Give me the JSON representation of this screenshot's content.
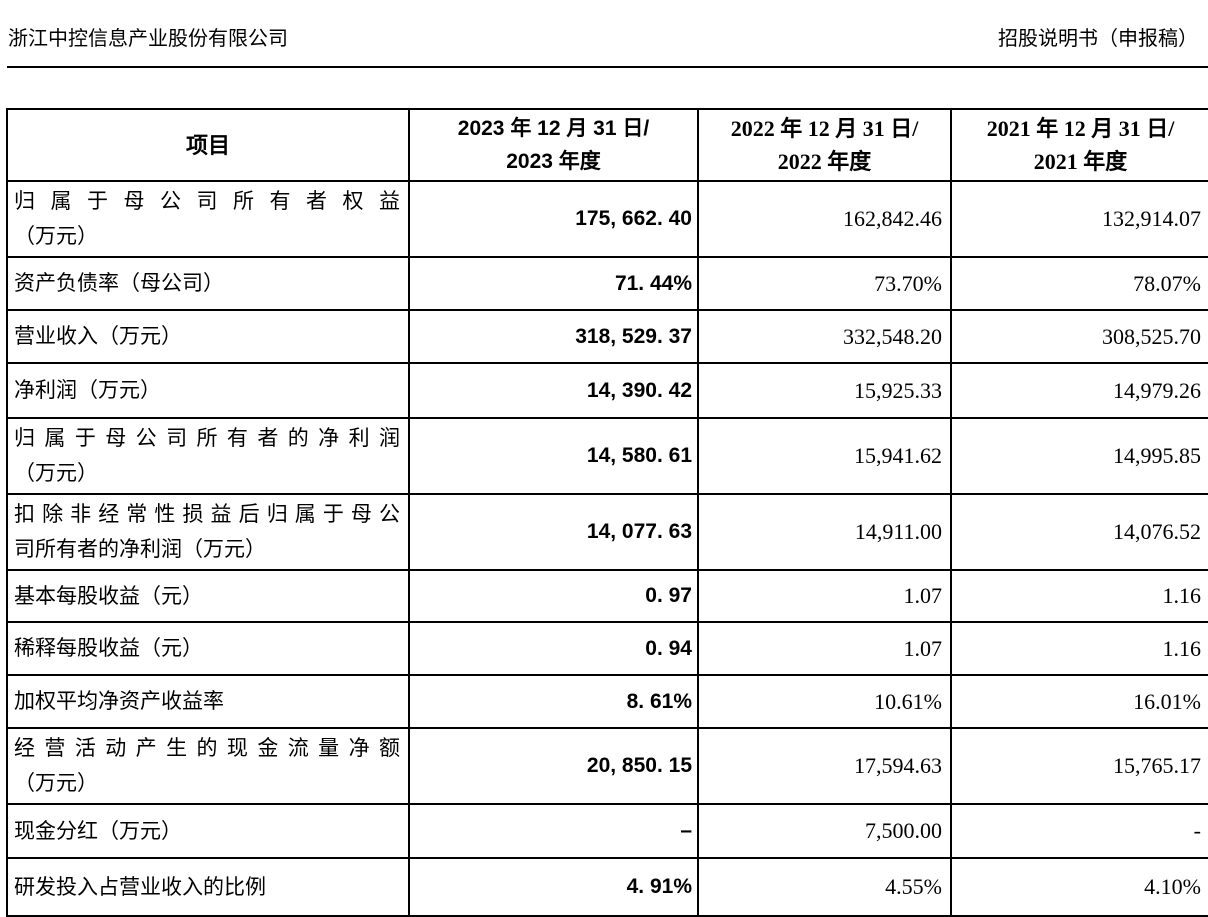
{
  "page_header": {
    "company_name": "浙江中控信息产业股份有限公司",
    "document_title": "招股说明书（申报稿）"
  },
  "table": {
    "columns": [
      {
        "label_lines": [
          "项目"
        ]
      },
      {
        "label_lines": [
          "2023 年 12 月 31 日/",
          "2023 年度"
        ]
      },
      {
        "label_lines": [
          "2022 年 12 月 31 日/",
          "2022 年度"
        ]
      },
      {
        "label_lines": [
          "2021 年 12 月 31 日/",
          "2021 年度"
        ]
      }
    ],
    "rows": [
      {
        "item_lines": [
          "归属于母公司所有者权益",
          "（万元）"
        ],
        "v2023": "175, 662. 40",
        "v2022": "162,842.46",
        "v2021": "132,914.07"
      },
      {
        "item_lines": [
          "资产负债率（母公司）"
        ],
        "v2023": "71. 44%",
        "v2022": "73.70%",
        "v2021": "78.07%"
      },
      {
        "item_lines": [
          "营业收入（万元）"
        ],
        "v2023": "318, 529. 37",
        "v2022": "332,548.20",
        "v2021": "308,525.70"
      },
      {
        "item_lines": [
          "净利润（万元）"
        ],
        "v2023": "14, 390. 42",
        "v2022": "15,925.33",
        "v2021": "14,979.26"
      },
      {
        "item_lines": [
          "归属于母公司所有者的净利润",
          "（万元）"
        ],
        "v2023": "14, 580. 61",
        "v2022": "15,941.62",
        "v2021": "14,995.85"
      },
      {
        "item_lines": [
          "扣除非经常性损益后归属于母公",
          "司所有者的净利润（万元）"
        ],
        "v2023": "14, 077. 63",
        "v2022": "14,911.00",
        "v2021": "14,076.52"
      },
      {
        "item_lines": [
          "基本每股收益（元）"
        ],
        "v2023": "0. 97",
        "v2022": "1.07",
        "v2021": "1.16"
      },
      {
        "item_lines": [
          "稀释每股收益（元）"
        ],
        "v2023": "0. 94",
        "v2022": "1.07",
        "v2021": "1.16"
      },
      {
        "item_lines": [
          "加权平均净资产收益率"
        ],
        "v2023": "8. 61%",
        "v2022": "10.61%",
        "v2021": "16.01%"
      },
      {
        "item_lines": [
          "经营活动产生的现金流量净额",
          "（万元）"
        ],
        "v2023": "20, 850. 15",
        "v2022": "17,594.63",
        "v2021": "15,765.17"
      },
      {
        "item_lines": [
          "现金分红（万元）"
        ],
        "v2023": "–",
        "v2022": "7,500.00",
        "v2021": "-"
      },
      {
        "item_lines": [
          "研发投入占营业收入的比例"
        ],
        "v2023": "4. 91%",
        "v2022": "4.55%",
        "v2021": "4.10%"
      }
    ]
  }
}
